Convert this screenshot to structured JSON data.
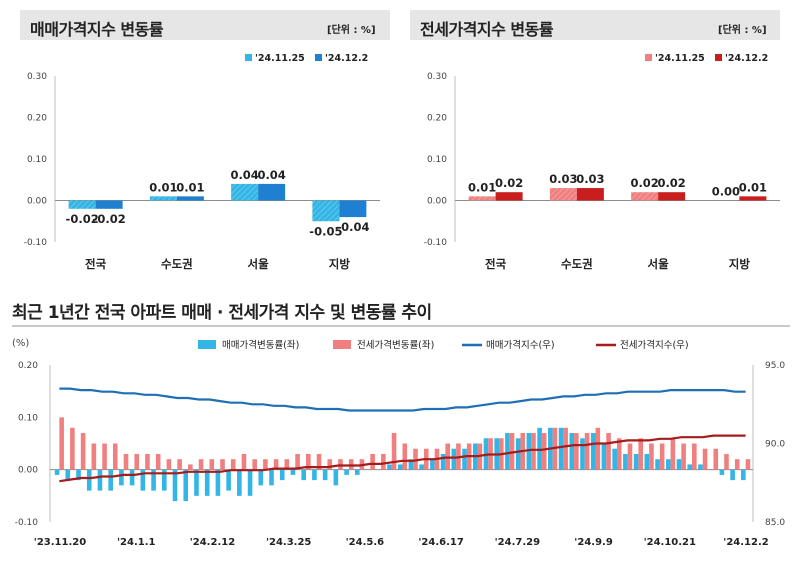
{
  "panels": {
    "left": {
      "title": "매매가격지수 변동률",
      "unit": "[단위 : %]"
    },
    "right": {
      "title": "전세가격지수 변동률",
      "unit": "[단위 : %]"
    }
  },
  "section": {
    "title": "최근 1년간 전국 아파트 매매 · 전세가격 지수 및 변동률 추이"
  },
  "colors": {
    "sale_prev": "#33b5e5",
    "sale_curr": "#1f7fd0",
    "jeonse_prev": "#f08080",
    "jeonse_curr": "#c81e1e",
    "sale_index_line": "#1f6fb4",
    "jeonse_index_line": "#a51c1c"
  },
  "chart_data": [
    {
      "type": "bar",
      "title": "매매가격지수 변동률",
      "categories": [
        "전국",
        "수도권",
        "서울",
        "지방"
      ],
      "series": [
        {
          "name": "'24.11.25",
          "values": [
            -0.02,
            0.01,
            0.04,
            -0.05
          ],
          "labels": [
            "-0.02",
            "0.01",
            "0.04",
            "-0.05"
          ]
        },
        {
          "name": "'24.12.2",
          "values": [
            -0.02,
            0.01,
            0.04,
            -0.04
          ],
          "labels": [
            "-0.02",
            "0.01",
            "0.04",
            "-0.04"
          ]
        }
      ],
      "ylim": [
        -0.1,
        0.3
      ],
      "yticks": [
        "0.30",
        "0.20",
        "0.10",
        "0.00",
        "-0.10"
      ],
      "legend": "top-right"
    },
    {
      "type": "bar",
      "title": "전세가격지수 변동률",
      "categories": [
        "전국",
        "수도권",
        "서울",
        "지방"
      ],
      "series": [
        {
          "name": "'24.11.25",
          "values": [
            0.01,
            0.03,
            0.02,
            0.0
          ],
          "labels": [
            "0.01",
            "0.03",
            "0.02",
            "0.00"
          ]
        },
        {
          "name": "'24.12.2",
          "values": [
            0.02,
            0.03,
            0.02,
            0.01
          ],
          "labels": [
            "0.02",
            "0.03",
            "0.02",
            "0.01"
          ]
        }
      ],
      "ylim": [
        -0.1,
        0.3
      ],
      "yticks": [
        "0.30",
        "0.20",
        "0.10",
        "0.00",
        "-0.10"
      ],
      "legend": "top-right"
    },
    {
      "type": "bar",
      "title": "최근 1년간 전국 아파트 매매 · 전세가격 지수 및 변동률 추이",
      "ylabel": "(%)",
      "ylim": [
        -0.1,
        0.2
      ],
      "yticks": [
        "0.20",
        "0.10",
        "0.00",
        "-0.10"
      ],
      "y2lim": [
        85.0,
        95.0
      ],
      "y2ticks": [
        "95.0",
        "90.0",
        "85.0"
      ],
      "xticklabels": [
        "'23.11.20",
        "'24.1.1",
        "'24.2.12",
        "'24.3.25",
        "'24.5.6",
        "'24.6.17",
        "'24.7.29",
        "'24.9.9",
        "'24.10.21",
        "'24.12.2"
      ],
      "legend": "top",
      "series": [
        {
          "name": "매매가격변동률(좌)",
          "kind": "bar",
          "values": [
            -0.01,
            -0.02,
            -0.02,
            -0.04,
            -0.04,
            -0.04,
            -0.03,
            -0.03,
            -0.04,
            -0.04,
            -0.04,
            -0.06,
            -0.06,
            -0.05,
            -0.05,
            -0.05,
            -0.04,
            -0.05,
            -0.05,
            -0.03,
            -0.03,
            -0.02,
            -0.01,
            -0.02,
            -0.02,
            -0.02,
            -0.03,
            -0.01,
            -0.01,
            0.0,
            0.0,
            0.01,
            0.01,
            0.02,
            0.01,
            0.02,
            0.03,
            0.04,
            0.04,
            0.05,
            0.06,
            0.06,
            0.07,
            0.06,
            0.07,
            0.08,
            0.08,
            0.08,
            0.07,
            0.06,
            0.07,
            0.05,
            0.04,
            0.03,
            0.03,
            0.03,
            0.02,
            0.02,
            0.02,
            0.01,
            0.01,
            0.0,
            -0.01,
            -0.02,
            -0.02
          ]
        },
        {
          "name": "전세가격변동률(좌)",
          "kind": "bar",
          "values": [
            0.1,
            0.08,
            0.07,
            0.05,
            0.05,
            0.05,
            0.03,
            0.03,
            0.03,
            0.03,
            0.02,
            0.02,
            0.01,
            0.02,
            0.02,
            0.02,
            0.02,
            0.03,
            0.02,
            0.02,
            0.02,
            0.02,
            0.03,
            0.03,
            0.03,
            0.02,
            0.02,
            0.02,
            0.02,
            0.03,
            0.03,
            0.07,
            0.05,
            0.04,
            0.04,
            0.04,
            0.05,
            0.05,
            0.05,
            0.05,
            0.06,
            0.06,
            0.07,
            0.07,
            0.07,
            0.07,
            0.08,
            0.08,
            0.07,
            0.07,
            0.08,
            0.07,
            0.06,
            0.05,
            0.06,
            0.05,
            0.05,
            0.06,
            0.05,
            0.05,
            0.04,
            0.04,
            0.03,
            0.02,
            0.02
          ]
        },
        {
          "name": "매매가격지수(우)",
          "kind": "line",
          "axis": "right",
          "values": [
            93.5,
            93.5,
            93.4,
            93.4,
            93.3,
            93.3,
            93.2,
            93.2,
            93.1,
            93.1,
            93.0,
            92.9,
            92.9,
            92.8,
            92.8,
            92.7,
            92.6,
            92.6,
            92.5,
            92.5,
            92.4,
            92.4,
            92.3,
            92.3,
            92.2,
            92.2,
            92.2,
            92.1,
            92.1,
            92.1,
            92.1,
            92.1,
            92.1,
            92.1,
            92.2,
            92.2,
            92.2,
            92.3,
            92.3,
            92.4,
            92.5,
            92.6,
            92.6,
            92.7,
            92.8,
            92.8,
            92.9,
            93.0,
            93.0,
            93.1,
            93.1,
            93.2,
            93.2,
            93.3,
            93.3,
            93.3,
            93.3,
            93.4,
            93.4,
            93.4,
            93.4,
            93.4,
            93.4,
            93.3,
            93.3
          ]
        },
        {
          "name": "전세가격지수(우)",
          "kind": "line",
          "axis": "right",
          "values": [
            87.6,
            87.7,
            87.8,
            87.8,
            87.9,
            87.9,
            88.0,
            88.0,
            88.1,
            88.1,
            88.1,
            88.1,
            88.2,
            88.2,
            88.2,
            88.2,
            88.3,
            88.3,
            88.3,
            88.3,
            88.4,
            88.4,
            88.4,
            88.5,
            88.5,
            88.5,
            88.6,
            88.6,
            88.6,
            88.7,
            88.7,
            88.8,
            88.9,
            88.9,
            89.0,
            89.0,
            89.1,
            89.1,
            89.2,
            89.2,
            89.3,
            89.3,
            89.4,
            89.5,
            89.6,
            89.6,
            89.7,
            89.8,
            89.9,
            89.9,
            90.0,
            90.0,
            90.1,
            90.2,
            90.2,
            90.2,
            90.3,
            90.3,
            90.4,
            90.4,
            90.4,
            90.5,
            90.5,
            90.5,
            90.5
          ]
        }
      ]
    }
  ]
}
